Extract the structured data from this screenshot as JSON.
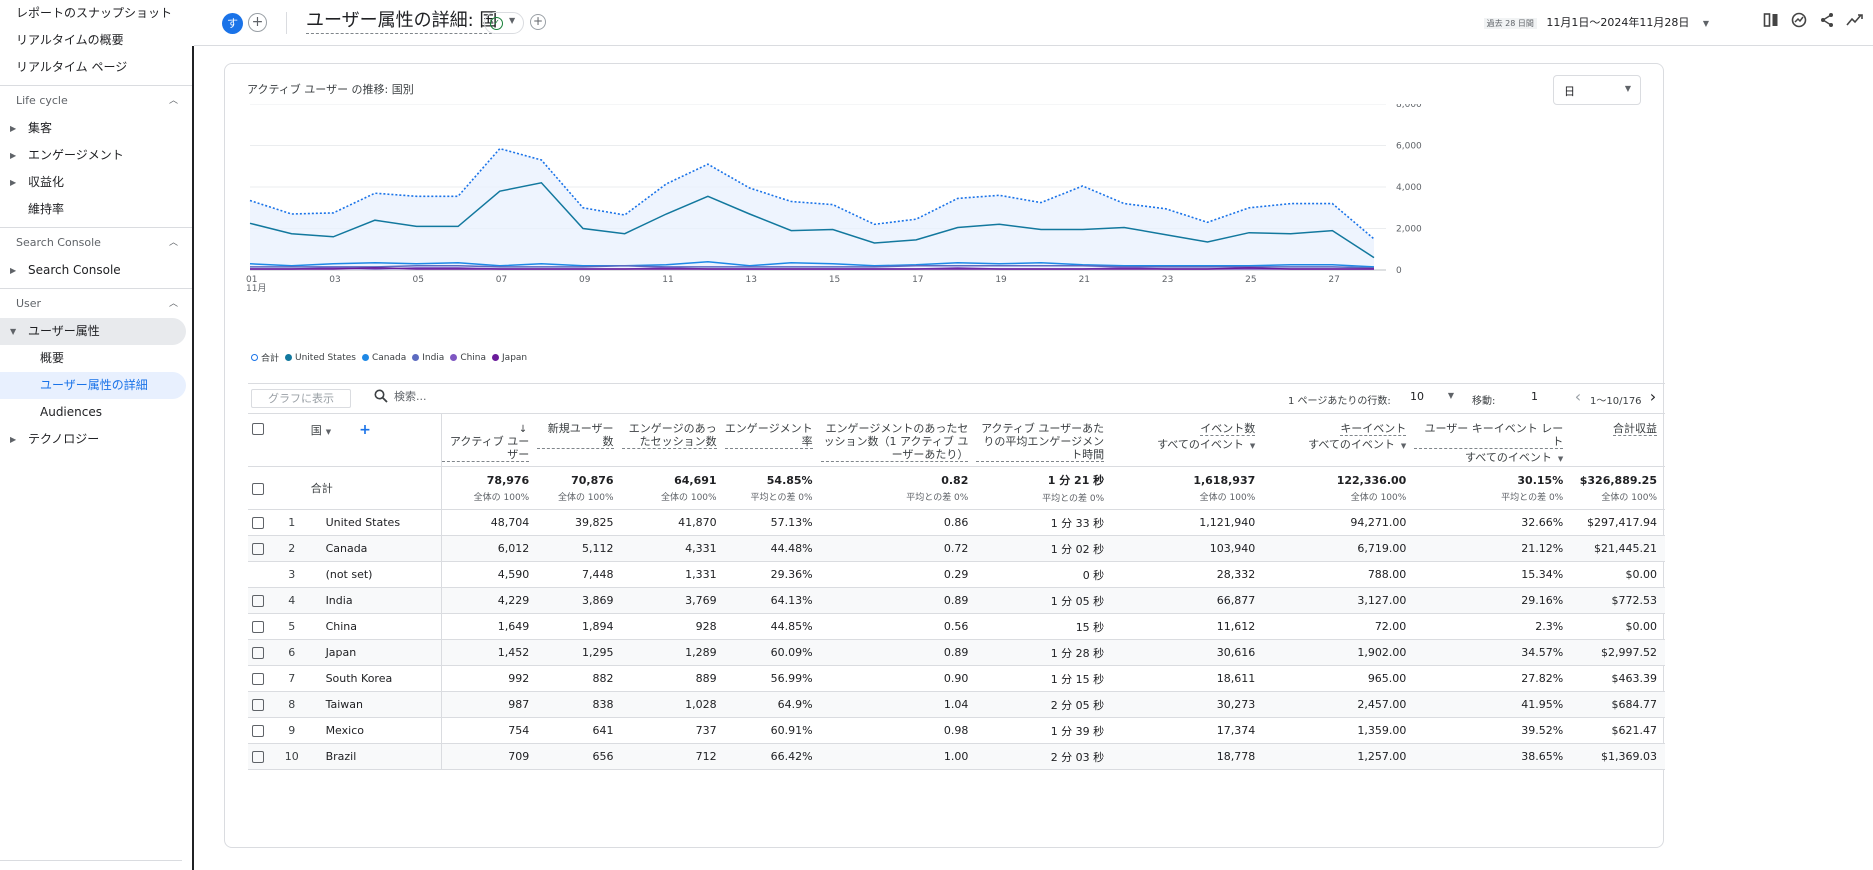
{
  "sidebar": {
    "top_items": [
      "レポートのスナップショット",
      "リアルタイムの概要",
      "リアルタイム ページ"
    ],
    "sections": [
      {
        "title": "Life cycle",
        "items": [
          {
            "label": "集客",
            "expandable": true
          },
          {
            "label": "エンゲージメント",
            "expandable": true
          },
          {
            "label": "収益化",
            "expandable": true
          },
          {
            "label": "維持率",
            "expandable": false
          }
        ]
      },
      {
        "title": "Search Console",
        "items": [
          {
            "label": "Search Console",
            "expandable": true
          }
        ]
      },
      {
        "title": "User",
        "items": [
          {
            "label": "ユーザー属性",
            "expandable": true,
            "expanded": true
          },
          {
            "label": "概要",
            "sub": true
          },
          {
            "label": "ユーザー属性の詳細",
            "sub": true,
            "selected": true
          },
          {
            "label": "Audiences",
            "sub": true
          },
          {
            "label": "テクノロジー",
            "expandable": true
          }
        ]
      }
    ]
  },
  "header": {
    "avatar": "す",
    "title": "ユーザー属性の詳細: 国",
    "date_badge": "過去 28 日間",
    "date_range": "11月1日～2024年11月28日",
    "icons": [
      "compare-icon",
      "insights-icon",
      "share-icon",
      "trend-icon"
    ]
  },
  "card": {
    "chart_title": "アクティブ ユーザー の推移: 国別",
    "granularity": "日"
  },
  "chart_data": {
    "type": "line",
    "x": [
      "01",
      "02",
      "03",
      "04",
      "05",
      "06",
      "07",
      "08",
      "09",
      "10",
      "11",
      "12",
      "13",
      "14",
      "15",
      "16",
      "17",
      "18",
      "19",
      "20",
      "21",
      "22",
      "23",
      "24",
      "25",
      "26",
      "27",
      "28"
    ],
    "x_tick_labels": [
      "01",
      "03",
      "05",
      "07",
      "09",
      "11",
      "13",
      "15",
      "17",
      "19",
      "21",
      "23",
      "25",
      "27"
    ],
    "x_month_label": "11月",
    "ylim": [
      0,
      8000
    ],
    "y_ticks": [
      "0",
      "2,000",
      "4,000",
      "6,000",
      "8,000"
    ],
    "series": [
      {
        "name": "合計",
        "color": "#1a73e8",
        "style": "dotted",
        "fill": true,
        "values": [
          3350,
          2700,
          2750,
          3700,
          3550,
          3550,
          5850,
          5300,
          3000,
          2650,
          4150,
          5100,
          3950,
          3300,
          3150,
          2200,
          2450,
          3450,
          3600,
          3250,
          4050,
          3200,
          2950,
          2300,
          3000,
          3200,
          3200,
          1500
        ]
      },
      {
        "name": "United States",
        "color": "#12789e",
        "style": "solid",
        "values": [
          2250,
          1750,
          1600,
          2400,
          2100,
          2100,
          3800,
          4200,
          2000,
          1750,
          2700,
          3550,
          2700,
          1900,
          1950,
          1300,
          1450,
          2050,
          2200,
          1950,
          1950,
          2050,
          1700,
          1350,
          1800,
          1750,
          1900,
          600
        ]
      },
      {
        "name": "Canada",
        "color": "#1e88e5",
        "style": "solid",
        "values": [
          300,
          200,
          300,
          350,
          300,
          350,
          200,
          300,
          200,
          200,
          250,
          400,
          200,
          350,
          300,
          200,
          250,
          350,
          300,
          350,
          250,
          200,
          200,
          200,
          200,
          250,
          250,
          150
        ]
      },
      {
        "name": "India",
        "color": "#5c6bc0",
        "style": "solid",
        "values": [
          150,
          150,
          150,
          150,
          200,
          200,
          150,
          150,
          150,
          200,
          150,
          150,
          150,
          150,
          150,
          150,
          200,
          200,
          200,
          200,
          200,
          150,
          150,
          150,
          150,
          150,
          150,
          100
        ]
      },
      {
        "name": "China",
        "color": "#7e57c2",
        "style": "solid",
        "values": [
          50,
          50,
          100,
          50,
          100,
          100,
          50,
          50,
          50,
          50,
          100,
          50,
          50,
          50,
          50,
          50,
          50,
          100,
          50,
          50,
          50,
          100,
          50,
          50,
          50,
          50,
          50,
          50
        ]
      },
      {
        "name": "Japan",
        "color": "#6a1b9a",
        "style": "solid",
        "values": [
          50,
          50,
          50,
          100,
          50,
          50,
          50,
          50,
          50,
          50,
          50,
          50,
          50,
          50,
          50,
          50,
          50,
          50,
          50,
          50,
          50,
          50,
          50,
          50,
          100,
          50,
          50,
          50
        ]
      }
    ]
  },
  "toolbar": {
    "plot_button": "グラフに表示",
    "search_placeholder": "検索...",
    "rows_label": "1 ページあたりの行数:",
    "rows_value": "10",
    "goto_label": "移動:",
    "goto_value": "1",
    "range": "1～10/176"
  },
  "table": {
    "dimension_header": "国",
    "columns": [
      {
        "label": "アクティブ ユーザー",
        "sorted": true
      },
      {
        "label": "新規ユーザー数"
      },
      {
        "label": "エンゲージのあったセッション数"
      },
      {
        "label": "エンゲージメント率"
      },
      {
        "label": "エンゲージメントのあったセッション数（1 アクティブ ユーザーあたり）"
      },
      {
        "label": "アクティブ ユーザーあたりの平均エンゲージメント時間"
      },
      {
        "label": "イベント数",
        "sub": "すべてのイベント"
      },
      {
        "label": "キーイベント",
        "sub": "すべてのイベント"
      },
      {
        "label": "ユーザー キーイベント レート",
        "sub": "すべてのイベント"
      },
      {
        "label": "合計収益"
      }
    ],
    "totals": {
      "label": "合計",
      "values": [
        "78,976",
        "70,876",
        "64,691",
        "54.85%",
        "0.82",
        "1 分 21 秒",
        "1,618,937",
        "122,336.00",
        "30.15%",
        "$326,889.25"
      ],
      "notes": [
        "全体の 100%",
        "全体の 100%",
        "全体の 100%",
        "平均との差 0%",
        "平均との差 0%",
        "平均との差 0%",
        "全体の 100%",
        "全体の 100%",
        "平均との差 0%",
        "全体の 100%"
      ]
    },
    "rows": [
      {
        "rank": "1",
        "country": "United States",
        "checkbox": true,
        "values": [
          "48,704",
          "39,825",
          "41,870",
          "57.13%",
          "0.86",
          "1 分 33 秒",
          "1,121,940",
          "94,271.00",
          "32.66%",
          "$297,417.94"
        ]
      },
      {
        "rank": "2",
        "country": "Canada",
        "checkbox": true,
        "values": [
          "6,012",
          "5,112",
          "4,331",
          "44.48%",
          "0.72",
          "1 分 02 秒",
          "103,940",
          "6,719.00",
          "21.12%",
          "$21,445.21"
        ]
      },
      {
        "rank": "3",
        "country": "(not set)",
        "checkbox": false,
        "values": [
          "4,590",
          "7,448",
          "1,331",
          "29.36%",
          "0.29",
          "0 秒",
          "28,332",
          "788.00",
          "15.34%",
          "$0.00"
        ]
      },
      {
        "rank": "4",
        "country": "India",
        "checkbox": true,
        "values": [
          "4,229",
          "3,869",
          "3,769",
          "64.13%",
          "0.89",
          "1 分 05 秒",
          "66,877",
          "3,127.00",
          "29.16%",
          "$772.53"
        ]
      },
      {
        "rank": "5",
        "country": "China",
        "checkbox": true,
        "values": [
          "1,649",
          "1,894",
          "928",
          "44.85%",
          "0.56",
          "15 秒",
          "11,612",
          "72.00",
          "2.3%",
          "$0.00"
        ]
      },
      {
        "rank": "6",
        "country": "Japan",
        "checkbox": true,
        "values": [
          "1,452",
          "1,295",
          "1,289",
          "60.09%",
          "0.89",
          "1 分 28 秒",
          "30,616",
          "1,902.00",
          "34.57%",
          "$2,997.52"
        ]
      },
      {
        "rank": "7",
        "country": "South Korea",
        "checkbox": true,
        "values": [
          "992",
          "882",
          "889",
          "56.99%",
          "0.90",
          "1 分 15 秒",
          "18,611",
          "965.00",
          "27.82%",
          "$463.39"
        ]
      },
      {
        "rank": "8",
        "country": "Taiwan",
        "checkbox": true,
        "values": [
          "987",
          "838",
          "1,028",
          "64.9%",
          "1.04",
          "2 分 05 秒",
          "30,273",
          "2,457.00",
          "41.95%",
          "$684.77"
        ]
      },
      {
        "rank": "9",
        "country": "Mexico",
        "checkbox": true,
        "values": [
          "754",
          "641",
          "737",
          "60.91%",
          "0.98",
          "1 分 39 秒",
          "17,374",
          "1,359.00",
          "39.52%",
          "$621.47"
        ]
      },
      {
        "rank": "10",
        "country": "Brazil",
        "checkbox": true,
        "values": [
          "709",
          "656",
          "712",
          "66.42%",
          "1.00",
          "2 分 03 秒",
          "18,778",
          "1,257.00",
          "38.65%",
          "$1,369.03"
        ]
      }
    ]
  }
}
